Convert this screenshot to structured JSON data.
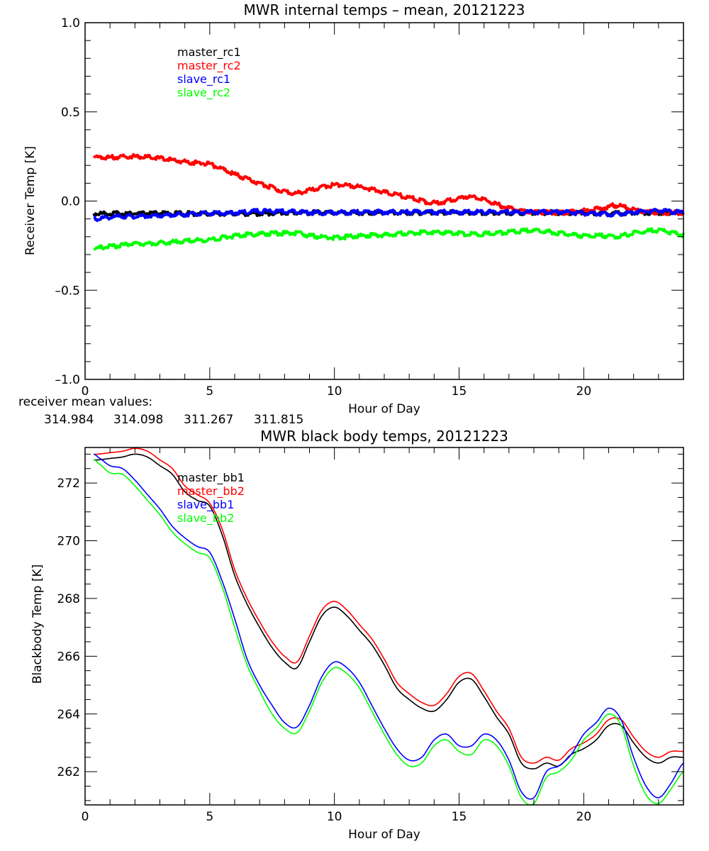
{
  "chart_data": [
    {
      "type": "line",
      "title": "MWR internal temps – mean, 20121223",
      "xlabel": "Hour of Day",
      "ylabel": "Receiver Temp [K]",
      "xlim": [
        0,
        24
      ],
      "ylim": [
        -1.0,
        1.0
      ],
      "xticks": [
        "0",
        "5",
        "10",
        "15",
        "20"
      ],
      "xtick_values": [
        0,
        5,
        10,
        15,
        20
      ],
      "yticks": [
        "-1.0",
        "-0.5",
        "0.0",
        "0.5",
        "1.0"
      ],
      "ytick_values": [
        -1.0,
        -0.5,
        0.0,
        0.5,
        1.0
      ],
      "grid": false,
      "legend_position": "top-left-inside",
      "x": [
        0.35,
        1,
        2,
        3,
        4,
        5,
        6,
        7,
        8,
        8.5,
        9,
        10,
        11,
        12,
        13,
        14,
        15,
        15.3,
        16,
        17,
        18,
        19,
        20,
        21,
        21.3,
        22,
        23,
        24
      ],
      "series": [
        {
          "name": "master_rc1",
          "color": "#000000",
          "values": [
            -0.07,
            -0.07,
            -0.07,
            -0.07,
            -0.07,
            -0.07,
            -0.07,
            -0.07,
            -0.065,
            -0.065,
            -0.065,
            -0.065,
            -0.065,
            -0.065,
            -0.065,
            -0.065,
            -0.065,
            -0.065,
            -0.065,
            -0.065,
            -0.065,
            -0.065,
            -0.065,
            -0.07,
            -0.07,
            -0.065,
            -0.065,
            -0.065
          ]
        },
        {
          "name": "master_rc2",
          "color": "#ff0000",
          "values": [
            0.245,
            0.245,
            0.25,
            0.24,
            0.22,
            0.205,
            0.15,
            0.1,
            0.055,
            0.045,
            0.06,
            0.09,
            0.08,
            0.05,
            0.02,
            -0.01,
            0.015,
            0.025,
            0.005,
            -0.04,
            -0.06,
            -0.065,
            -0.055,
            -0.035,
            -0.025,
            -0.05,
            -0.065,
            -0.065
          ]
        },
        {
          "name": "slave_rc1",
          "color": "#0000ff",
          "values": [
            -0.1,
            -0.09,
            -0.085,
            -0.08,
            -0.075,
            -0.07,
            -0.065,
            -0.058,
            -0.058,
            -0.06,
            -0.065,
            -0.065,
            -0.062,
            -0.062,
            -0.062,
            -0.062,
            -0.062,
            -0.062,
            -0.062,
            -0.062,
            -0.062,
            -0.062,
            -0.068,
            -0.072,
            -0.072,
            -0.062,
            -0.055,
            -0.065
          ]
        },
        {
          "name": "slave_rc2",
          "color": "#00ff00",
          "values": [
            -0.265,
            -0.255,
            -0.24,
            -0.235,
            -0.225,
            -0.215,
            -0.195,
            -0.185,
            -0.18,
            -0.18,
            -0.195,
            -0.205,
            -0.195,
            -0.19,
            -0.18,
            -0.175,
            -0.18,
            -0.185,
            -0.185,
            -0.175,
            -0.165,
            -0.18,
            -0.195,
            -0.195,
            -0.2,
            -0.18,
            -0.165,
            -0.19
          ]
        }
      ],
      "annotation": {
        "label": "receiver mean values:",
        "values": [
          {
            "text": "314.984",
            "color": "#000000"
          },
          {
            "text": "314.098",
            "color": "#ff0000"
          },
          {
            "text": "311.267",
            "color": "#0000ff"
          },
          {
            "text": "311.815",
            "color": "#00ff00"
          }
        ]
      }
    },
    {
      "type": "line",
      "title": "MWR black body temps, 20121223",
      "xlabel": "Hour of Day",
      "ylabel": "Blackbody Temp [K]",
      "xlim": [
        0,
        24
      ],
      "ylim": [
        260.85,
        273.23
      ],
      "xticks": [
        "0",
        "5",
        "10",
        "15",
        "20"
      ],
      "xtick_values": [
        0,
        5,
        10,
        15,
        20
      ],
      "yticks": [
        "262",
        "264",
        "266",
        "268",
        "270",
        "272"
      ],
      "ytick_values": [
        262,
        264,
        266,
        268,
        270,
        272
      ],
      "grid": false,
      "legend_position": "top-left-inside",
      "x": [
        0.35,
        0.5,
        1,
        1.5,
        2,
        2.5,
        3,
        3.5,
        4,
        4.5,
        5,
        5.5,
        6,
        6.5,
        7,
        7.5,
        8,
        8.5,
        9,
        9.5,
        10,
        10.5,
        11,
        11.5,
        12,
        12.5,
        13,
        13.5,
        14,
        14.5,
        15,
        15.5,
        16,
        16.5,
        17,
        17.5,
        18,
        18.5,
        19,
        19.5,
        20,
        20.5,
        21,
        21.5,
        22,
        22.5,
        23,
        23.5,
        24
      ],
      "series": [
        {
          "name": "master_bb1",
          "color": "#000000",
          "values": [
            272.8,
            272.8,
            272.85,
            272.9,
            273.0,
            272.9,
            272.6,
            272.3,
            271.7,
            271.4,
            271.2,
            270.2,
            268.8,
            267.8,
            267.0,
            266.3,
            265.8,
            265.6,
            266.5,
            267.4,
            267.7,
            267.4,
            266.9,
            266.4,
            265.7,
            264.9,
            264.5,
            264.2,
            264.1,
            264.5,
            265.1,
            265.2,
            264.6,
            263.9,
            263.3,
            262.3,
            262.1,
            262.3,
            262.2,
            262.6,
            262.8,
            263.1,
            263.6,
            263.6,
            263.0,
            262.5,
            262.3,
            262.5,
            262.5
          ]
        },
        {
          "name": "master_bb2",
          "color": "#ff0000",
          "values": [
            273.0,
            273.0,
            273.05,
            273.1,
            273.2,
            273.1,
            272.8,
            272.5,
            271.9,
            271.6,
            271.3,
            270.4,
            269.0,
            268.0,
            267.2,
            266.5,
            266.0,
            265.8,
            266.7,
            267.6,
            267.9,
            267.6,
            267.1,
            266.6,
            265.9,
            265.1,
            264.7,
            264.4,
            264.3,
            264.7,
            265.3,
            265.4,
            264.8,
            264.1,
            263.5,
            262.5,
            262.3,
            262.5,
            262.4,
            262.8,
            263.0,
            263.3,
            263.8,
            263.8,
            263.2,
            262.7,
            262.5,
            262.7,
            262.7
          ]
        },
        {
          "name": "slave_bb1",
          "color": "#0000ff",
          "values": [
            273.0,
            272.9,
            272.6,
            272.5,
            272.1,
            271.6,
            271.1,
            270.5,
            270.1,
            269.8,
            269.6,
            268.6,
            267.3,
            265.9,
            265.0,
            264.3,
            263.7,
            263.55,
            264.3,
            265.3,
            265.8,
            265.6,
            265.1,
            264.3,
            263.5,
            262.8,
            262.4,
            262.5,
            263.1,
            263.3,
            262.9,
            262.9,
            263.3,
            263.1,
            262.4,
            261.3,
            261.1,
            262.0,
            262.2,
            262.6,
            263.3,
            263.7,
            264.2,
            263.8,
            262.5,
            261.5,
            261.1,
            261.6,
            262.3
          ]
        },
        {
          "name": "slave_bb2",
          "color": "#00ff00",
          "values": [
            272.8,
            272.7,
            272.35,
            272.3,
            271.9,
            271.4,
            270.9,
            270.3,
            269.9,
            269.6,
            269.4,
            268.4,
            267.0,
            265.7,
            264.8,
            264.0,
            263.5,
            263.35,
            264.1,
            265.1,
            265.6,
            265.4,
            264.9,
            264.1,
            263.3,
            262.6,
            262.2,
            262.3,
            262.9,
            263.1,
            262.7,
            262.6,
            263.1,
            262.9,
            262.2,
            261.1,
            260.9,
            261.8,
            262.0,
            262.4,
            263.1,
            263.5,
            264.0,
            263.6,
            262.2,
            261.2,
            260.9,
            261.4,
            262.0
          ]
        }
      ]
    }
  ]
}
